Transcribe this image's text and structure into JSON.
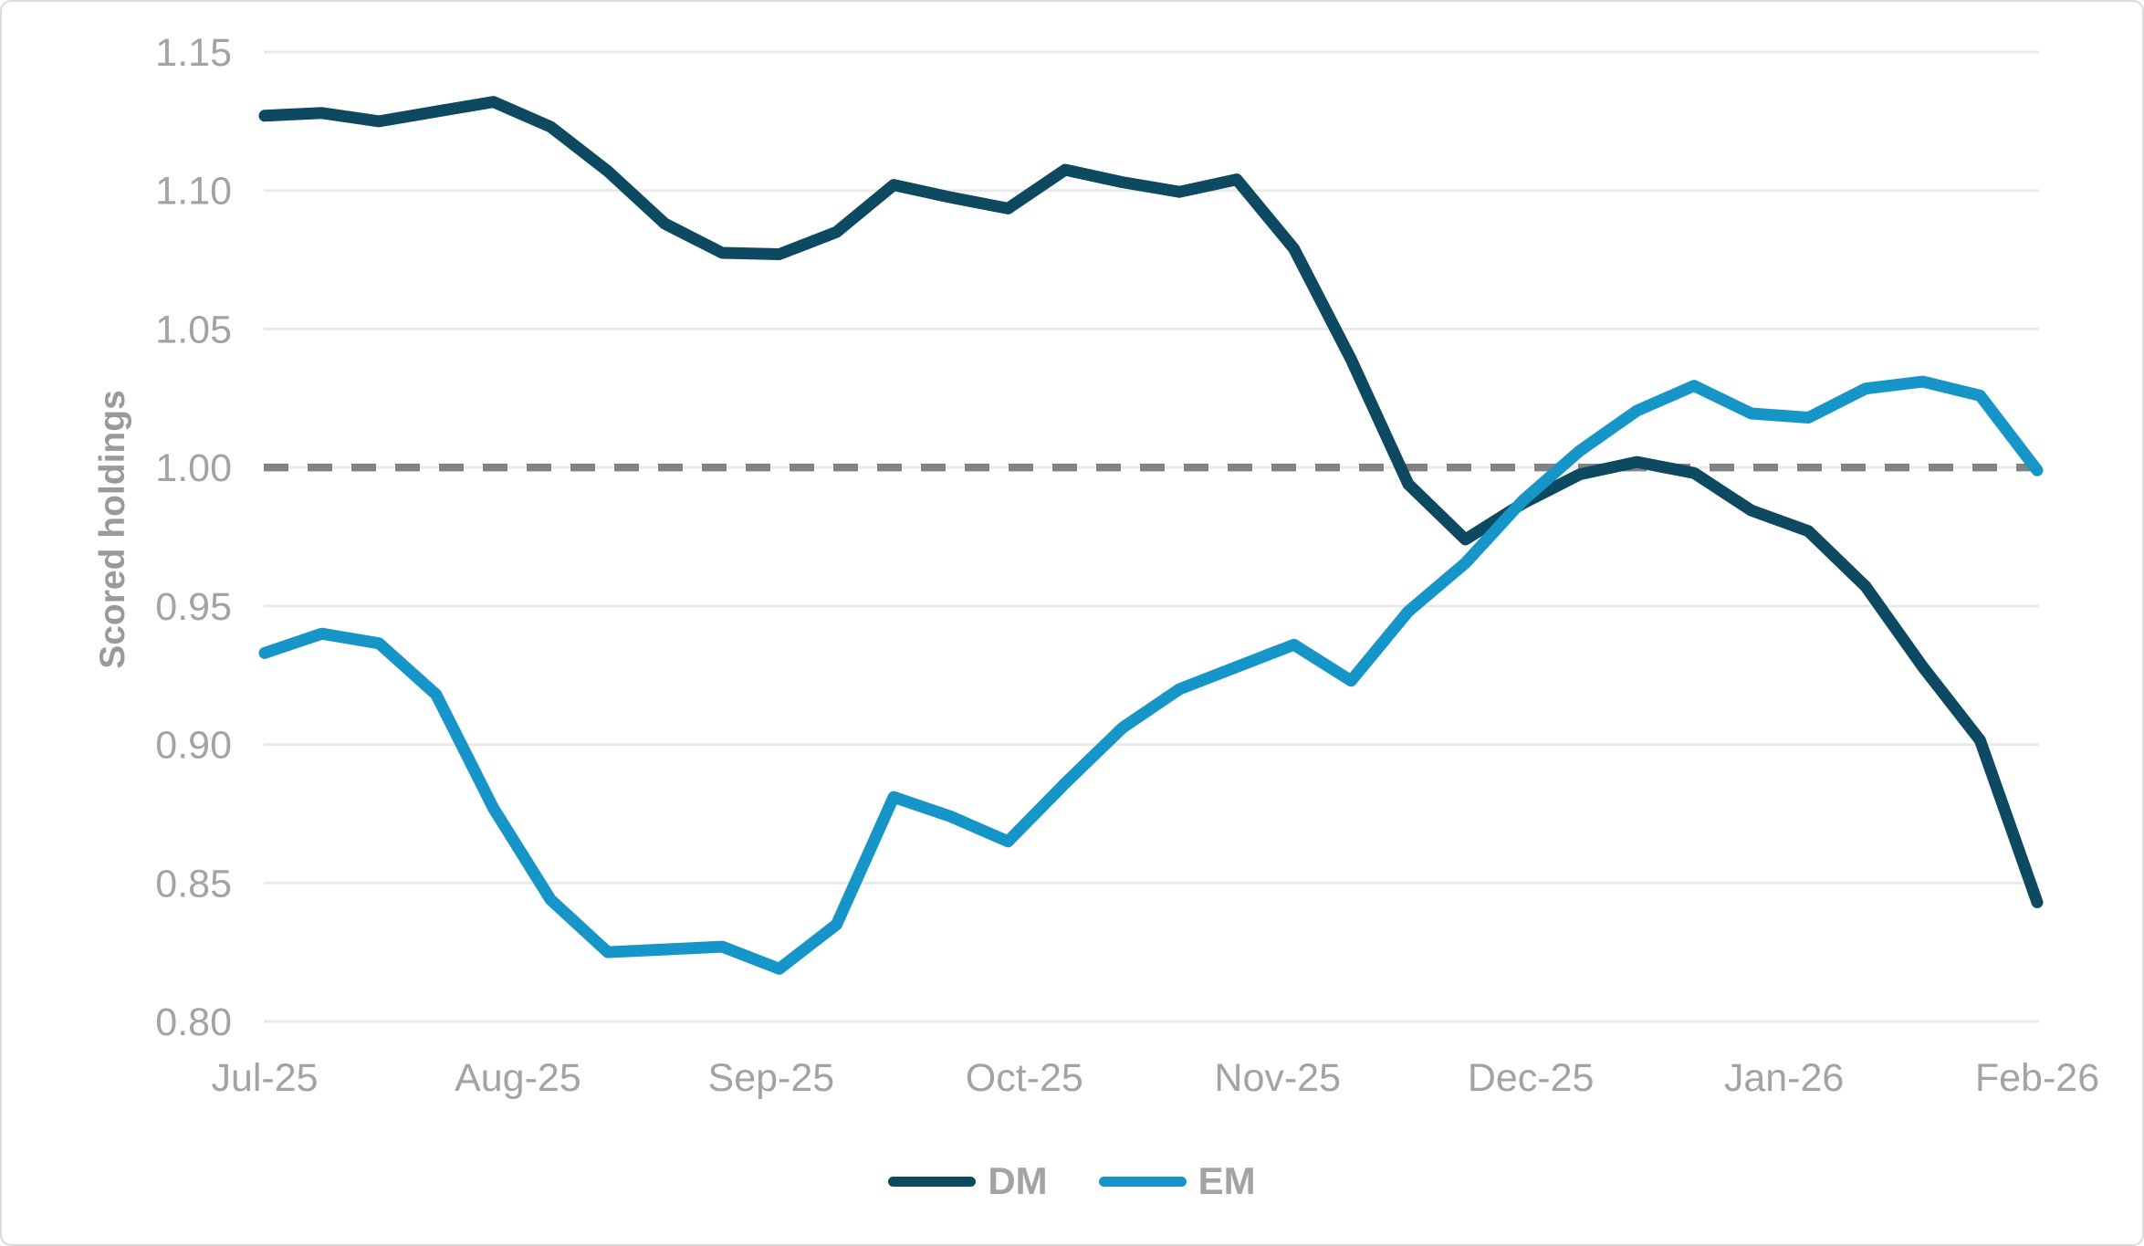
{
  "chart_data": {
    "type": "line",
    "title": "",
    "xlabel": "",
    "ylabel": "Scored holdings",
    "x_tick_labels": [
      "Jul-25",
      "Aug-25",
      "Sep-25",
      "Oct-25",
      "Nov-25",
      "Dec-25",
      "Jan-26",
      "Feb-26"
    ],
    "y_tick_labels": [
      "1.15",
      "1.10",
      "1.05",
      "1.00",
      "0.95",
      "0.90",
      "0.85",
      "0.80"
    ],
    "y_tick_values": [
      1.15,
      1.1,
      1.05,
      1.0,
      0.95,
      0.9,
      0.85,
      0.8
    ],
    "ylim": [
      0.8,
      1.15
    ],
    "grid": "horizontal-only",
    "gridline_color": "#e9e9e9",
    "tick_label_color": "#a3a3a3",
    "reference_line": {
      "value": 1.0,
      "style": "dashed",
      "color": "#828282"
    },
    "legend_position": "bottom-center",
    "x_frequency": "weekly",
    "series": [
      {
        "name": "DM",
        "color": "#0d4961",
        "values": [
          1.127,
          1.128,
          1.125,
          1.1285,
          1.132,
          1.123,
          1.107,
          1.088,
          1.0775,
          1.077,
          1.085,
          1.102,
          1.0975,
          1.0935,
          1.1075,
          1.103,
          1.0995,
          1.104,
          1.079,
          1.039,
          0.994,
          0.974,
          0.987,
          0.9975,
          1.002,
          0.998,
          0.9845,
          0.977,
          0.957,
          0.928,
          0.9015,
          0.843
        ]
      },
      {
        "name": "EM",
        "color": "#1695c9",
        "values": [
          0.933,
          0.94,
          0.9365,
          0.918,
          0.877,
          0.844,
          0.825,
          0.826,
          0.827,
          0.819,
          0.835,
          0.881,
          0.874,
          0.865,
          0.886,
          0.906,
          0.92,
          0.928,
          0.936,
          0.923,
          0.948,
          0.9655,
          0.988,
          1.006,
          1.0205,
          1.0295,
          1.0195,
          1.018,
          1.0285,
          1.031,
          1.026,
          0.999
        ]
      }
    ]
  }
}
